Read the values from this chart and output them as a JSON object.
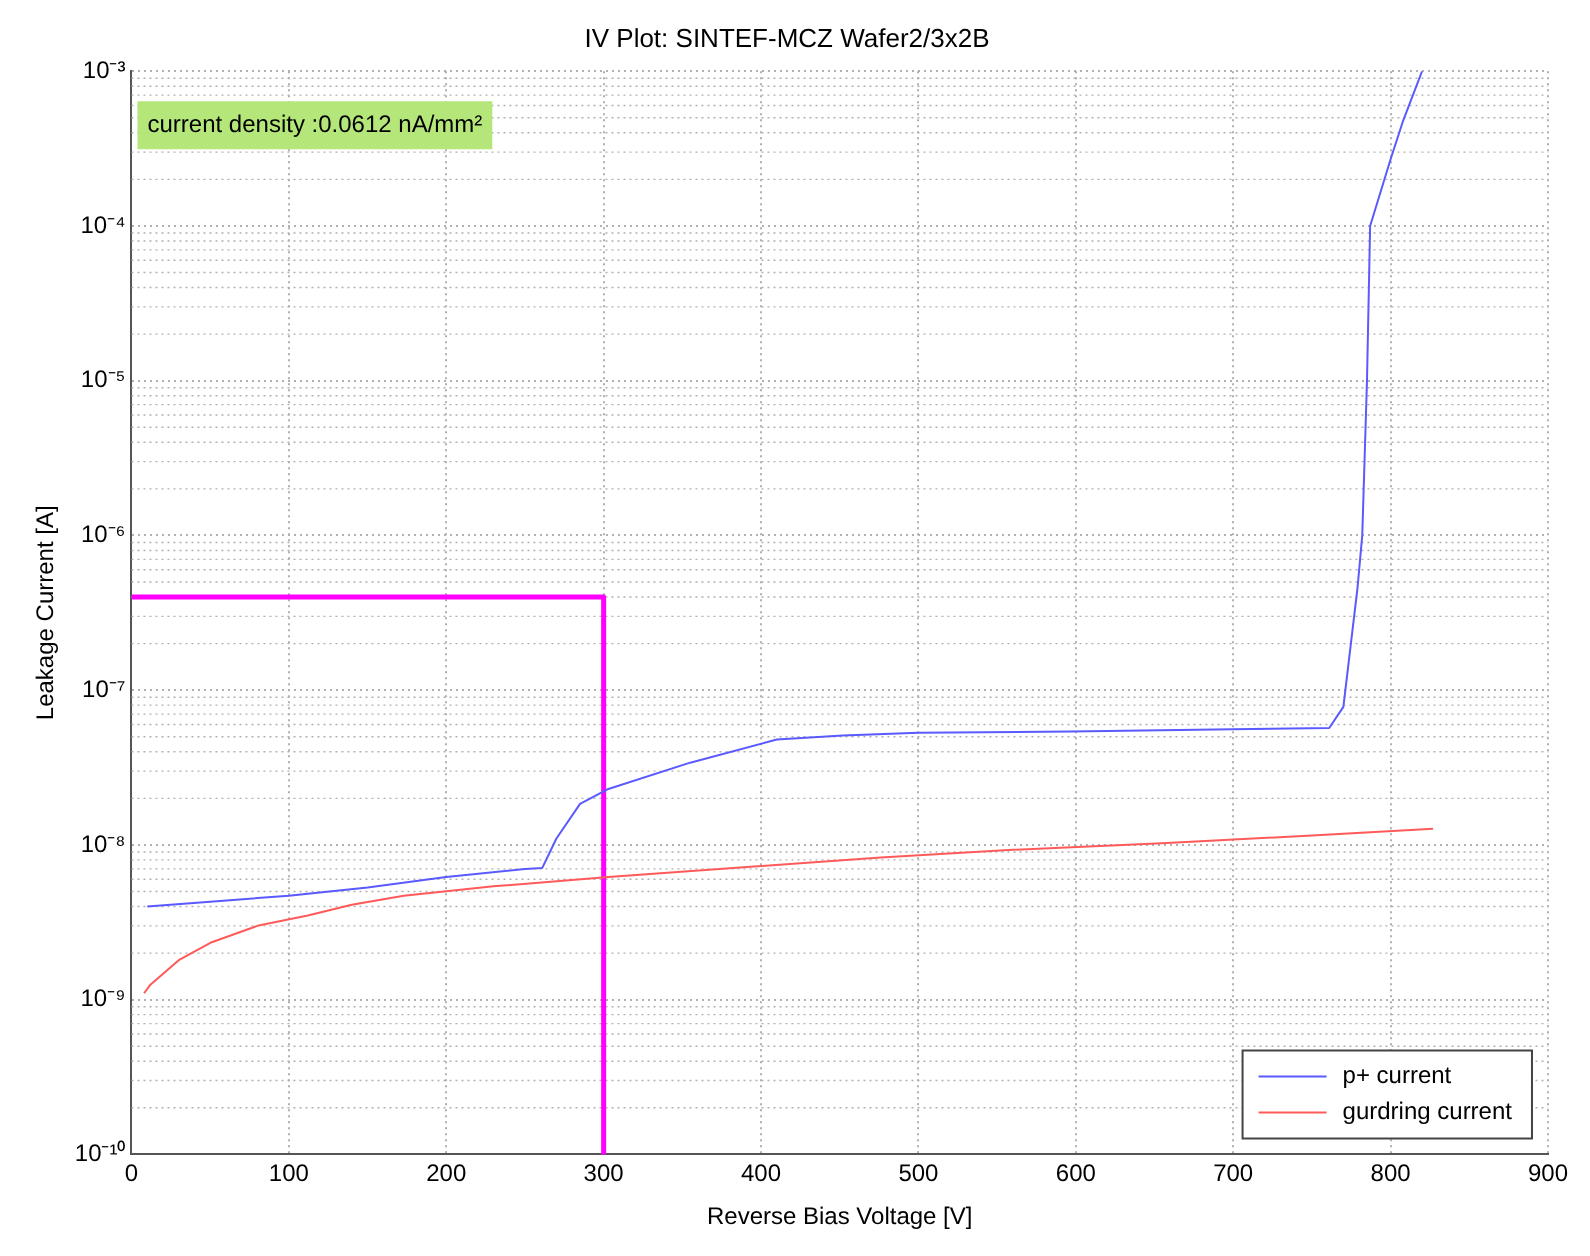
{
  "chart_data": {
    "type": "line",
    "title": "IV Plot: SINTEF-MCZ Wafer2/3x2B",
    "xlabel": "Reverse Bias Voltage [V]",
    "ylabel": "Leakage Current [A]",
    "annotations": [
      "current density :0.0612 nA/mm²"
    ],
    "xlim": [
      0,
      900
    ],
    "xticks": [
      0,
      100,
      200,
      300,
      400,
      500,
      600,
      700,
      800,
      900
    ],
    "ylim": [
      1e-10,
      0.001
    ],
    "yticks": [
      {
        "value": 1e-10,
        "label": "10⁻¹⁰"
      },
      {
        "value": 1e-09,
        "label": "10⁻⁹"
      },
      {
        "value": 1e-08,
        "label": "10⁻⁸"
      },
      {
        "value": 1e-07,
        "label": "10⁻⁷"
      },
      {
        "value": 1e-06,
        "label": "10⁻⁶"
      },
      {
        "value": 1e-05,
        "label": "10⁻⁵"
      },
      {
        "value": 0.0001,
        "label": "10⁻⁴"
      },
      {
        "value": 0.001,
        "label": "10⁻³"
      }
    ],
    "log": "y",
    "grid": true,
    "legend": "bottom right",
    "marker": "none",
    "line_style": "solid",
    "series": [
      {
        "name": "p+ current",
        "color": "#5a5aff",
        "x": [
          10,
          50,
          100,
          150,
          200,
          250,
          261,
          270,
          285,
          303,
          355,
          410,
          452,
          500,
          597,
          700,
          761,
          770,
          779,
          782,
          785,
          787,
          800,
          808,
          820
        ],
        "values": [
          4e-09,
          4.3e-09,
          4.7e-09,
          5.3e-09,
          6.2e-09,
          7e-09,
          7.1e-09,
          1.1e-08,
          1.84e-08,
          2.3e-08,
          3.4e-08,
          4.8e-08,
          5.1e-08,
          5.3e-08,
          5.4e-08,
          5.6e-08,
          5.7e-08,
          7.8e-08,
          4.6e-07,
          1e-06,
          1e-05,
          0.0001,
          0.00027,
          0.00048,
          0.001
        ]
      },
      {
        "name": "gurdring current",
        "color": "#ff5a5a",
        "x": [
          8,
          12,
          30,
          51,
          80,
          112,
          140,
          173,
          230,
          303,
          400,
          476,
          560,
          658,
          750,
          827
        ],
        "values": [
          1.1e-09,
          1.25e-09,
          1.8e-09,
          2.35e-09,
          3e-09,
          3.5e-09,
          4.1e-09,
          4.7e-09,
          5.4e-09,
          6.2e-09,
          7.3e-09,
          8.3e-09,
          9.3e-09,
          1.03e-08,
          1.15e-08,
          1.27e-08
        ]
      },
      {
        "color": "#ff00ff",
        "x": [
          0,
          300,
          300
        ],
        "values": [
          4e-07,
          4e-07,
          1e-10
        ]
      }
    ]
  }
}
